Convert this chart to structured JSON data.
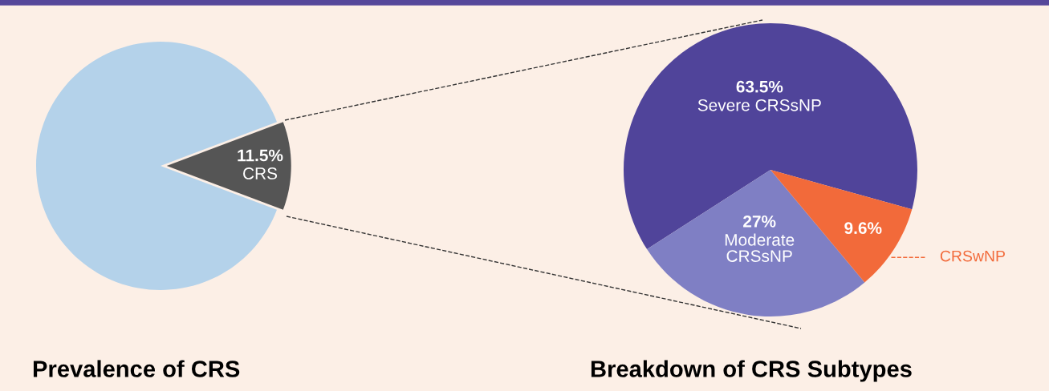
{
  "chart_data": [
    {
      "type": "pie",
      "title": "Prevalence of CRS",
      "categories": [
        null,
        "CRS"
      ],
      "values": [
        88.5,
        11.5
      ],
      "colors": [
        "#b4d2ea",
        "#555555"
      ],
      "value_labels": [
        null,
        "11.5%"
      ]
    },
    {
      "type": "pie",
      "title": "Breakdown of CRS Subtypes",
      "categories": [
        "Severe CRSsNP",
        "Moderate CRSsNP",
        "CRSwNP"
      ],
      "values": [
        63.5,
        27,
        9.6
      ],
      "colors": [
        "#50449a",
        "#7f7fc4",
        "#f26a3a"
      ],
      "value_labels": [
        "63.5%",
        "27%",
        "9.6%"
      ]
    }
  ]
}
